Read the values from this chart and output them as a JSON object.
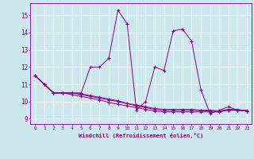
{
  "xlabel": "Windchill (Refroidissement éolien,°C)",
  "background_color": "#cce8ee",
  "grid_color": "#ffffff",
  "line_color": "#880088",
  "xlim": [
    -0.5,
    23.5
  ],
  "ylim": [
    8.7,
    15.7
  ],
  "yticks": [
    9,
    10,
    11,
    12,
    13,
    14,
    15
  ],
  "xticks": [
    0,
    1,
    2,
    3,
    4,
    5,
    6,
    7,
    8,
    9,
    10,
    11,
    12,
    13,
    14,
    15,
    16,
    17,
    18,
    19,
    20,
    21,
    22,
    23
  ],
  "series": [
    [
      11.5,
      11.0,
      10.5,
      10.5,
      10.5,
      10.5,
      12.0,
      12.0,
      12.5,
      15.3,
      14.5,
      9.5,
      10.0,
      12.0,
      11.8,
      14.1,
      14.2,
      13.5,
      10.7,
      9.3,
      9.5,
      9.7,
      9.5,
      9.5
    ],
    [
      11.5,
      11.0,
      10.5,
      10.5,
      10.4,
      10.3,
      10.2,
      10.1,
      9.95,
      9.85,
      9.75,
      9.65,
      9.55,
      9.45,
      9.4,
      9.4,
      9.4,
      9.4,
      9.4,
      9.4,
      9.4,
      9.5,
      9.5,
      9.45
    ],
    [
      11.5,
      11.0,
      10.5,
      10.5,
      10.5,
      10.45,
      10.35,
      10.25,
      10.15,
      10.05,
      9.9,
      9.8,
      9.7,
      9.6,
      9.55,
      9.55,
      9.55,
      9.55,
      9.5,
      9.5,
      9.45,
      9.5,
      9.5,
      9.45
    ],
    [
      11.5,
      11.0,
      10.5,
      10.5,
      10.5,
      10.4,
      10.3,
      10.2,
      10.1,
      10.0,
      9.88,
      9.76,
      9.65,
      9.55,
      9.48,
      9.48,
      9.48,
      9.48,
      9.48,
      9.45,
      9.45,
      9.55,
      9.55,
      9.45
    ]
  ]
}
